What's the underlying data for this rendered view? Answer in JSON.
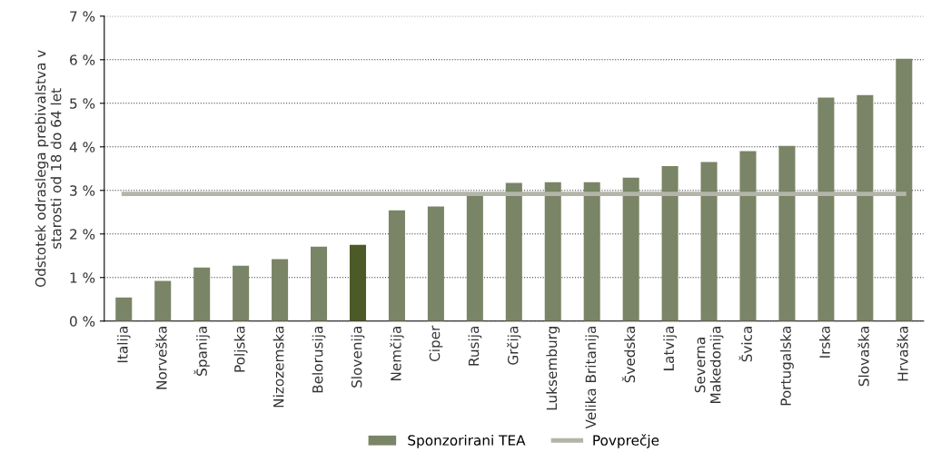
{
  "chart_data": {
    "type": "bar",
    "ylabel": "Odstotek odraslega prebivalstva v\nstarosti od 18 do 64 let",
    "categories": [
      "Italija",
      "Norveška",
      "Španija",
      "Poljska",
      "Nizozemska",
      "Belorusija",
      "Slovenija",
      "Nemčija",
      "Ciper",
      "Rusija",
      "Grčija",
      "Luksemburg",
      "Velika Britanija",
      "Švedska",
      "Latvija",
      "Severna\nMakedonija",
      "Švica",
      "Portugalska",
      "Irska",
      "Slovaška",
      "Hrvaška"
    ],
    "series": [
      {
        "name": "Sponzorirani TEA",
        "color": "#7a8466",
        "colors": [
          "#7a8466",
          "#7a8466",
          "#7a8466",
          "#7a8466",
          "#7a8466",
          "#7a8466",
          "#4b5a26",
          "#7a8466",
          "#7a8466",
          "#7a8466",
          "#7a8466",
          "#7a8466",
          "#7a8466",
          "#7a8466",
          "#7a8466",
          "#7a8466",
          "#7a8466",
          "#7a8466",
          "#7a8466",
          "#7a8466",
          "#7a8466"
        ],
        "values": [
          0.54,
          0.92,
          1.23,
          1.27,
          1.42,
          1.71,
          1.75,
          2.54,
          2.63,
          2.88,
          3.17,
          3.19,
          3.19,
          3.29,
          3.56,
          3.65,
          3.9,
          4.02,
          5.13,
          5.19,
          6.02
        ]
      },
      {
        "name": "Povprečje",
        "type": "line",
        "color": "#b3b5a8",
        "values": [
          2.92,
          2.92,
          2.92,
          2.92,
          2.92,
          2.92,
          2.92,
          2.92,
          2.92,
          2.92,
          2.92,
          2.92,
          2.92,
          2.92,
          2.92,
          2.92,
          2.92,
          2.92,
          2.92,
          2.92,
          2.92
        ]
      }
    ],
    "ylim": [
      0,
      7
    ],
    "yticks": [
      {
        "value": 0,
        "label": "0 %"
      },
      {
        "value": 1,
        "label": "1 %"
      },
      {
        "value": 2,
        "label": "2 %"
      },
      {
        "value": 3,
        "label": "3 %"
      },
      {
        "value": 4,
        "label": "4 %"
      },
      {
        "value": 5,
        "label": "5 %"
      },
      {
        "value": 6,
        "label": "6 %"
      },
      {
        "value": 7,
        "label": "7 %"
      }
    ],
    "grid": "y",
    "legend": "bottom",
    "marker": "none"
  }
}
